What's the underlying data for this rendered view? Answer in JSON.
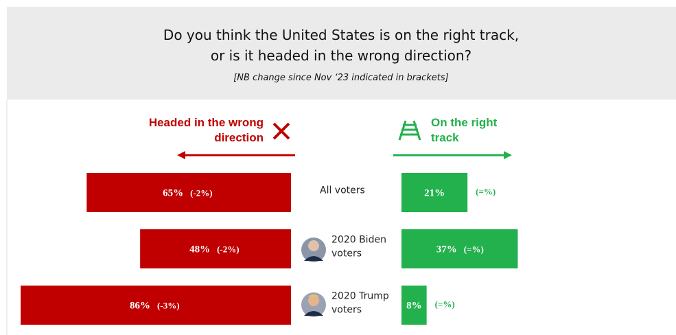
{
  "chart_data": {
    "type": "diverging_bar",
    "title": [
      "Do you think the United States is on the right track,",
      "or is it headed in the wrong direction?"
    ],
    "subtitle": "[NB change since Nov ‘23 indicated in brackets]",
    "categories": [
      "All voters",
      "2020 Biden voters",
      "2020 Trump voters"
    ],
    "series": [
      {
        "name": "Headed in the wrong direction",
        "color": "#c00000",
        "values": [
          65,
          48,
          86
        ],
        "value_labels": [
          "65%",
          "48%",
          "86%"
        ],
        "changes": [
          "(-2%)",
          "(-2%)",
          "(-3%)"
        ]
      },
      {
        "name": "On the right track",
        "color": "#22b14c",
        "values": [
          21,
          37,
          8
        ],
        "value_labels": [
          "21%",
          "37%",
          "8%"
        ],
        "changes": [
          "(=%)",
          "(=%)",
          "(=%)"
        ]
      }
    ]
  }
}
